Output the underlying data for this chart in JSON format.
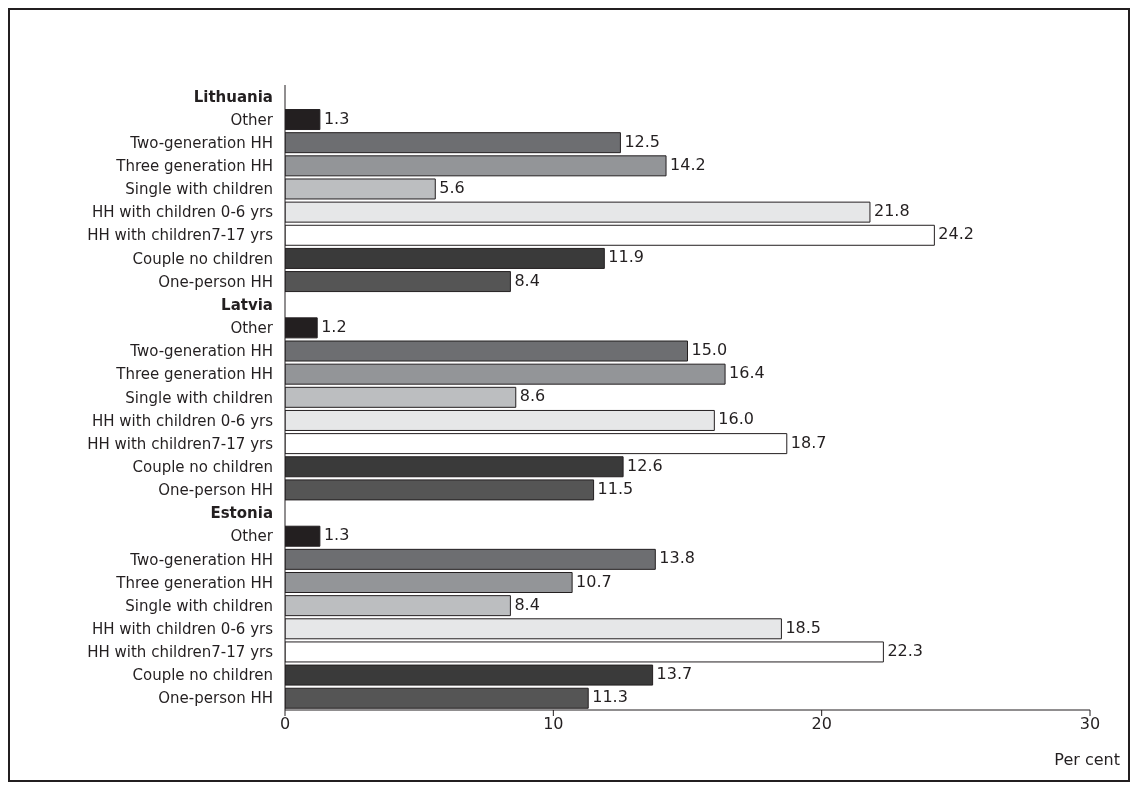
{
  "chart_data": {
    "type": "bar",
    "orientation": "horizontal",
    "xlabel": "Per cent",
    "categories": [
      "Lithuania",
      "Other",
      "Two-generation HH",
      "Three generation HH",
      "Single with  children",
      "HH with children 0-6 yrs",
      "HH with children7-17 yrs",
      "Couple no children",
      "One-person HH",
      "Latvia",
      "Other",
      "Two-generation HH",
      "Three generation HH",
      "Single with  children",
      "HH with children 0-6 yrs",
      "HH with children7-17 yrs",
      "Couple no children",
      "One-person HH",
      "Estonia",
      "Other",
      "Two-generation HH",
      "Three generation HH",
      "Single with  children",
      "HH with children 0-6 yrs",
      "HH with children7-17 yrs",
      "Couple no children",
      "One-person HH"
    ],
    "values": [
      null,
      1.3,
      12.5,
      14.2,
      5.6,
      21.8,
      24.2,
      11.9,
      8.4,
      null,
      1.2,
      15.0,
      16.4,
      8.6,
      16.0,
      18.7,
      12.6,
      11.5,
      null,
      1.3,
      13.8,
      10.7,
      8.4,
      18.5,
      22.3,
      13.7,
      11.3
    ],
    "value_labels": [
      null,
      "1.3",
      "12.5",
      "14.2",
      "5.6",
      "21.8",
      "24.2",
      "11.9",
      "8.4",
      null,
      "1.2",
      "15.0",
      "16.4",
      "8.6",
      "16.0",
      "18.7",
      "12.6",
      "11.5",
      null,
      "1.3",
      "13.8",
      "10.7",
      "8.4",
      "18.5",
      "22.3",
      "13.7",
      "11.3"
    ],
    "colors": [
      "#ffffff",
      "#231f20",
      "#6d6e71",
      "#939598",
      "#bcbec0",
      "#e6e7e8",
      "#ffffff",
      "#3a3a3a",
      "#555555",
      "#ffffff",
      "#231f20",
      "#6d6e71",
      "#939598",
      "#bcbec0",
      "#e6e7e8",
      "#ffffff",
      "#3a3a3a",
      "#555555",
      "#ffffff",
      "#231f20",
      "#6d6e71",
      "#939598",
      "#bcbec0",
      "#e6e7e8",
      "#ffffff",
      "#3a3a3a",
      "#555555"
    ],
    "xlim": [
      0,
      30
    ],
    "xticks": [
      0,
      10,
      20,
      30
    ],
    "grid": false
  }
}
